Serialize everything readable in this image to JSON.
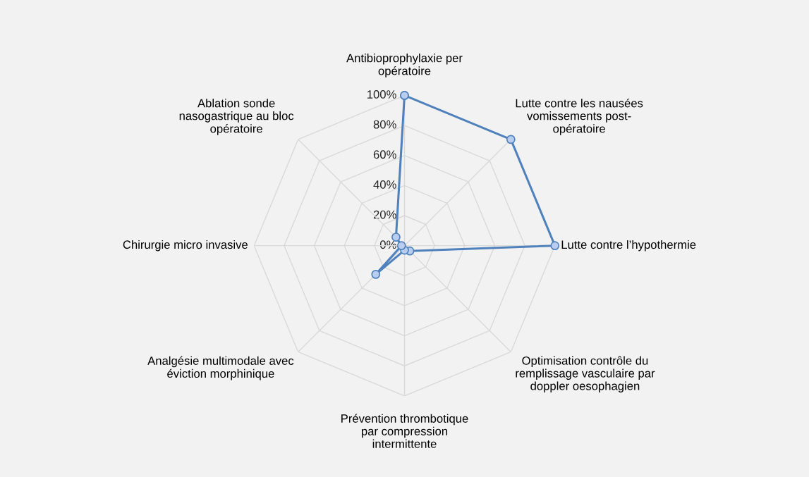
{
  "chart_data": {
    "type": "radar",
    "categories": [
      "Antibioprophylaxie per\nopératoire",
      "Lutte contre les nausées\nvomissements post-\nopératoire",
      "Lutte contre l’hypothermie",
      "Optimisation contrôle du\nremplissage vasculaire par\ndoppler oesophagien",
      "Prévention thrombotique\npar compression\nintermittente",
      "Analgésie multimodale avec\néviction morphinique",
      "Chirurgie micro invasive",
      "Ablation sonde\nnasogastrique au bloc\nopératoire"
    ],
    "series": [
      {
        "color": "#4f81bd",
        "values": [
          100,
          100,
          100,
          5,
          3,
          27,
          2,
          8
        ]
      }
    ],
    "ylim": [
      0,
      100
    ],
    "yticks": [
      {
        "value": 0,
        "label": "0%"
      },
      {
        "value": 20,
        "label": "20%"
      },
      {
        "value": 40,
        "label": "40%"
      },
      {
        "value": 60,
        "label": "60%"
      },
      {
        "value": 80,
        "label": "80%"
      },
      {
        "value": 100,
        "label": "100%"
      }
    ],
    "grid": true,
    "marker": "circle",
    "line_style": "solid"
  }
}
